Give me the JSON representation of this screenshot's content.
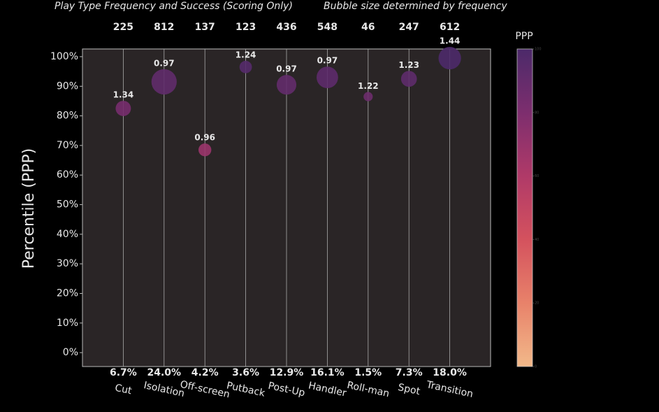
{
  "chart_data": {
    "type": "bubble",
    "title": "Play Type Frequency and Success (Scoring Only)",
    "subtitle": "Bubble size determined by frequency",
    "y_label": "Percentile (PPP)",
    "colorbar_label": "PPP",
    "categories": [
      "Cut",
      "Isolation",
      "Off-screen",
      "Putback",
      "Post-Up",
      "Handler",
      "Roll-man",
      "Spot",
      "Transition"
    ],
    "values": [
      82.5,
      91.5,
      68.5,
      96.5,
      90.5,
      93,
      86.5,
      92.5,
      99.5
    ],
    "sizes": [
      225,
      812,
      137,
      123,
      436,
      548,
      46,
      247,
      612
    ],
    "ppp": [
      1.34,
      0.97,
      0.96,
      1.24,
      0.97,
      0.97,
      1.22,
      1.23,
      1.44
    ],
    "share_labels": [
      "6.7%",
      "24.0%",
      "4.2%",
      "3.6%",
      "12.9%",
      "16.1%",
      "1.5%",
      "7.3%",
      "18.0%"
    ],
    "ylim": [
      -4.7,
      102.6
    ],
    "yticks": [
      {
        "value": 0,
        "label": "0%"
      },
      {
        "value": 10,
        "label": "10%"
      },
      {
        "value": 20,
        "label": "20%"
      },
      {
        "value": 30,
        "label": "30%"
      },
      {
        "value": 40,
        "label": "40%"
      },
      {
        "value": 50,
        "label": "50%"
      },
      {
        "value": 60,
        "label": "60%"
      },
      {
        "value": 70,
        "label": "70%"
      },
      {
        "value": 80,
        "label": "80%"
      },
      {
        "value": 90,
        "label": "90%"
      },
      {
        "value": 100,
        "label": "100%"
      }
    ],
    "clim": [
      0,
      100
    ],
    "cticks": [
      0,
      20,
      40,
      60,
      80,
      100
    ],
    "colormap": [
      "#f2b98a",
      "#e8826a",
      "#d4525e",
      "#b03a68",
      "#7d2e6e",
      "#4c2a6a"
    ],
    "plot_background": "#2a2526"
  }
}
